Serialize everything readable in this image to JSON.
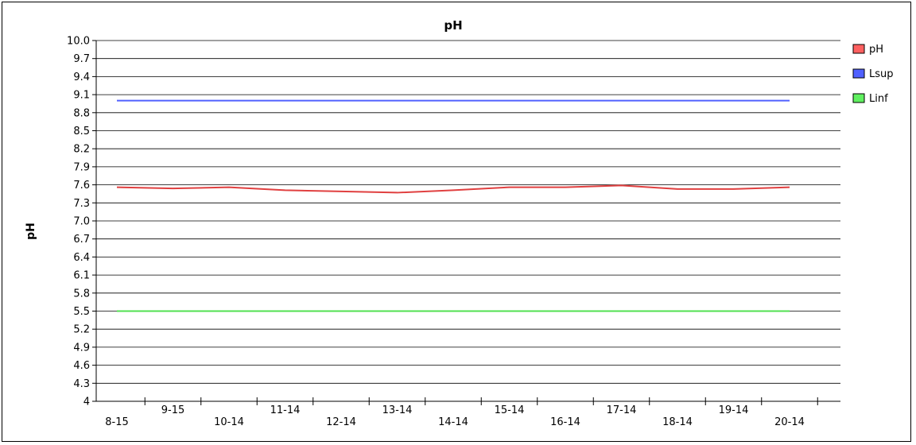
{
  "chart_data": {
    "type": "line",
    "title": "pH",
    "xlabel": "",
    "ylabel": "pH",
    "ylim": [
      4.0,
      10.0
    ],
    "yticks": [
      "10.0",
      "9.7",
      "9.4",
      "9.1",
      "8.8",
      "8.5",
      "8.2",
      "7.9",
      "7.6",
      "7.3",
      "7.0",
      "6.7",
      "6.4",
      "6.1",
      "5.8",
      "5.5",
      "5.2",
      "4.9",
      "4.6",
      "4.3",
      "4"
    ],
    "categories": [
      "8-15",
      "9-15",
      "10-14",
      "11-14",
      "12-14",
      "13-14",
      "14-14",
      "15-14",
      "16-14",
      "17-14",
      "18-14",
      "19-14",
      "20-14"
    ],
    "grid": true,
    "legend_position": "right",
    "series": [
      {
        "name": "pH",
        "color": "#e04040",
        "legend_color": "#ff6060",
        "values": [
          7.56,
          7.54,
          7.56,
          7.51,
          7.49,
          7.47,
          7.51,
          7.56,
          7.56,
          7.59,
          7.53,
          7.53,
          7.56
        ]
      },
      {
        "name": "Lsup",
        "color": "#5060ff",
        "legend_color": "#5060ff",
        "values": [
          9.0,
          9.0,
          9.0,
          9.0,
          9.0,
          9.0,
          9.0,
          9.0,
          9.0,
          9.0,
          9.0,
          9.0,
          9.0
        ]
      },
      {
        "name": "Linf",
        "color": "#50e050",
        "legend_color": "#60f060",
        "values": [
          5.5,
          5.5,
          5.5,
          5.5,
          5.5,
          5.5,
          5.5,
          5.5,
          5.5,
          5.5,
          5.5,
          5.5,
          5.5
        ]
      }
    ]
  }
}
